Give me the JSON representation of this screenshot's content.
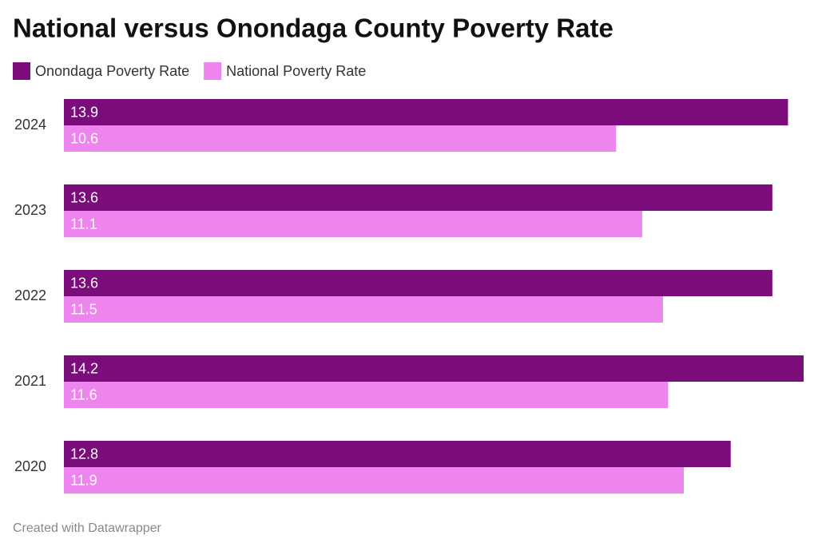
{
  "chart_data": {
    "type": "hbar",
    "title": "National versus Onondaga County Poverty Rate",
    "categories": [
      "2024",
      "2023",
      "2022",
      "2021",
      "2020"
    ],
    "series": [
      {
        "name": "Onondaga Poverty Rate",
        "color": "#7b0c7c",
        "values": [
          13.9,
          13.6,
          13.6,
          14.2,
          12.8
        ]
      },
      {
        "name": "National Poverty Rate",
        "color": "#ee84ee",
        "values": [
          10.6,
          11.1,
          11.5,
          11.6,
          11.9
        ]
      }
    ],
    "footer": "Created with Datawrapper"
  }
}
